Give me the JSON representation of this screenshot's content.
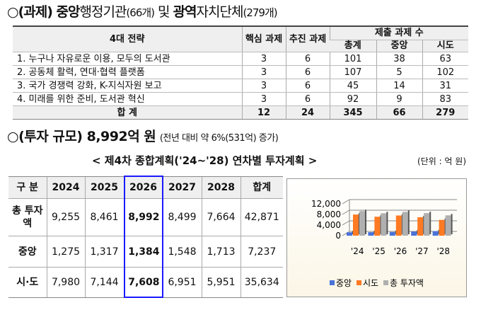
{
  "section1": {
    "bullet": "○",
    "title_bold1": "(과제) 중앙",
    "title_normal1": "행정기관",
    "title_count1": "(66개)",
    "title_and": " 및 ",
    "title_bold2": "광역",
    "title_normal2": "자치단체",
    "title_count2": "(279개)"
  },
  "table1": {
    "headers": {
      "strategy": "4대 전략",
      "core": "핵심 과제",
      "push": "추진 과제",
      "submitted": "제출 과제 수",
      "total": "총계",
      "central": "중앙",
      "local": "시도"
    },
    "rows": [
      {
        "strategy": "1. 누구나 자유로운 이용, 모두의 도서관",
        "core": "3",
        "push": "6",
        "total": "101",
        "central": "38",
        "local": "63"
      },
      {
        "strategy": "2. 공동체 활력, 연대·협력 플랫폼",
        "core": "3",
        "push": "6",
        "total": "107",
        "central": "5",
        "local": "102"
      },
      {
        "strategy": "3. 국가 경쟁력 강화, K-지식자원 보고",
        "core": "3",
        "push": "6",
        "total": "45",
        "central": "14",
        "local": "31"
      },
      {
        "strategy": "4. 미래를 위한 준비, 도서관 혁신",
        "core": "3",
        "push": "6",
        "total": "92",
        "central": "9",
        "local": "83"
      }
    ],
    "sum": {
      "label": "합 계",
      "core": "12",
      "push": "24",
      "total": "345",
      "central": "66",
      "local": "279"
    }
  },
  "section2": {
    "bullet": "○",
    "title": "(투자 규모) 8,992억 원",
    "note": "(전년 대비 약 6%(531억) 증가)",
    "subtitle": "< 제4차 종합계획('24~'28) 연차별 투자계획 >",
    "unit": "(단위 : 억 원)"
  },
  "table2": {
    "headers": [
      "구 분",
      "2024",
      "2025",
      "2026",
      "2027",
      "2028",
      "합계"
    ],
    "rows": [
      {
        "label": "총 투자액",
        "values": [
          "9,255",
          "8,461",
          "8,992",
          "8,499",
          "7,664",
          "42,871"
        ]
      },
      {
        "label": "중앙",
        "values": [
          "1,275",
          "1,317",
          "1,384",
          "1,548",
          "1,713",
          "7,237"
        ]
      },
      {
        "label": "시·도",
        "values": [
          "7,980",
          "7,144",
          "7,608",
          "6,951",
          "5,951",
          "35,634"
        ]
      }
    ]
  },
  "chart_data": {
    "type": "bar",
    "categories": [
      "'24",
      "'25",
      "'26",
      "'27",
      "'28"
    ],
    "series": [
      {
        "name": "중앙",
        "values": [
          1275,
          1317,
          1384,
          1548,
          1713
        ],
        "color": "#4a72d8"
      },
      {
        "name": "시도",
        "values": [
          7980,
          7144,
          7608,
          6951,
          5951
        ],
        "color": "#ff7a22"
      },
      {
        "name": "총 투자액",
        "values": [
          9255,
          8461,
          8992,
          8499,
          7664
        ],
        "color": "#b0b0b0"
      }
    ],
    "yticks": [
      "12,000",
      "8,000",
      "4,000",
      "0"
    ],
    "ylim": [
      0,
      12000
    ],
    "legend": "bottom"
  }
}
